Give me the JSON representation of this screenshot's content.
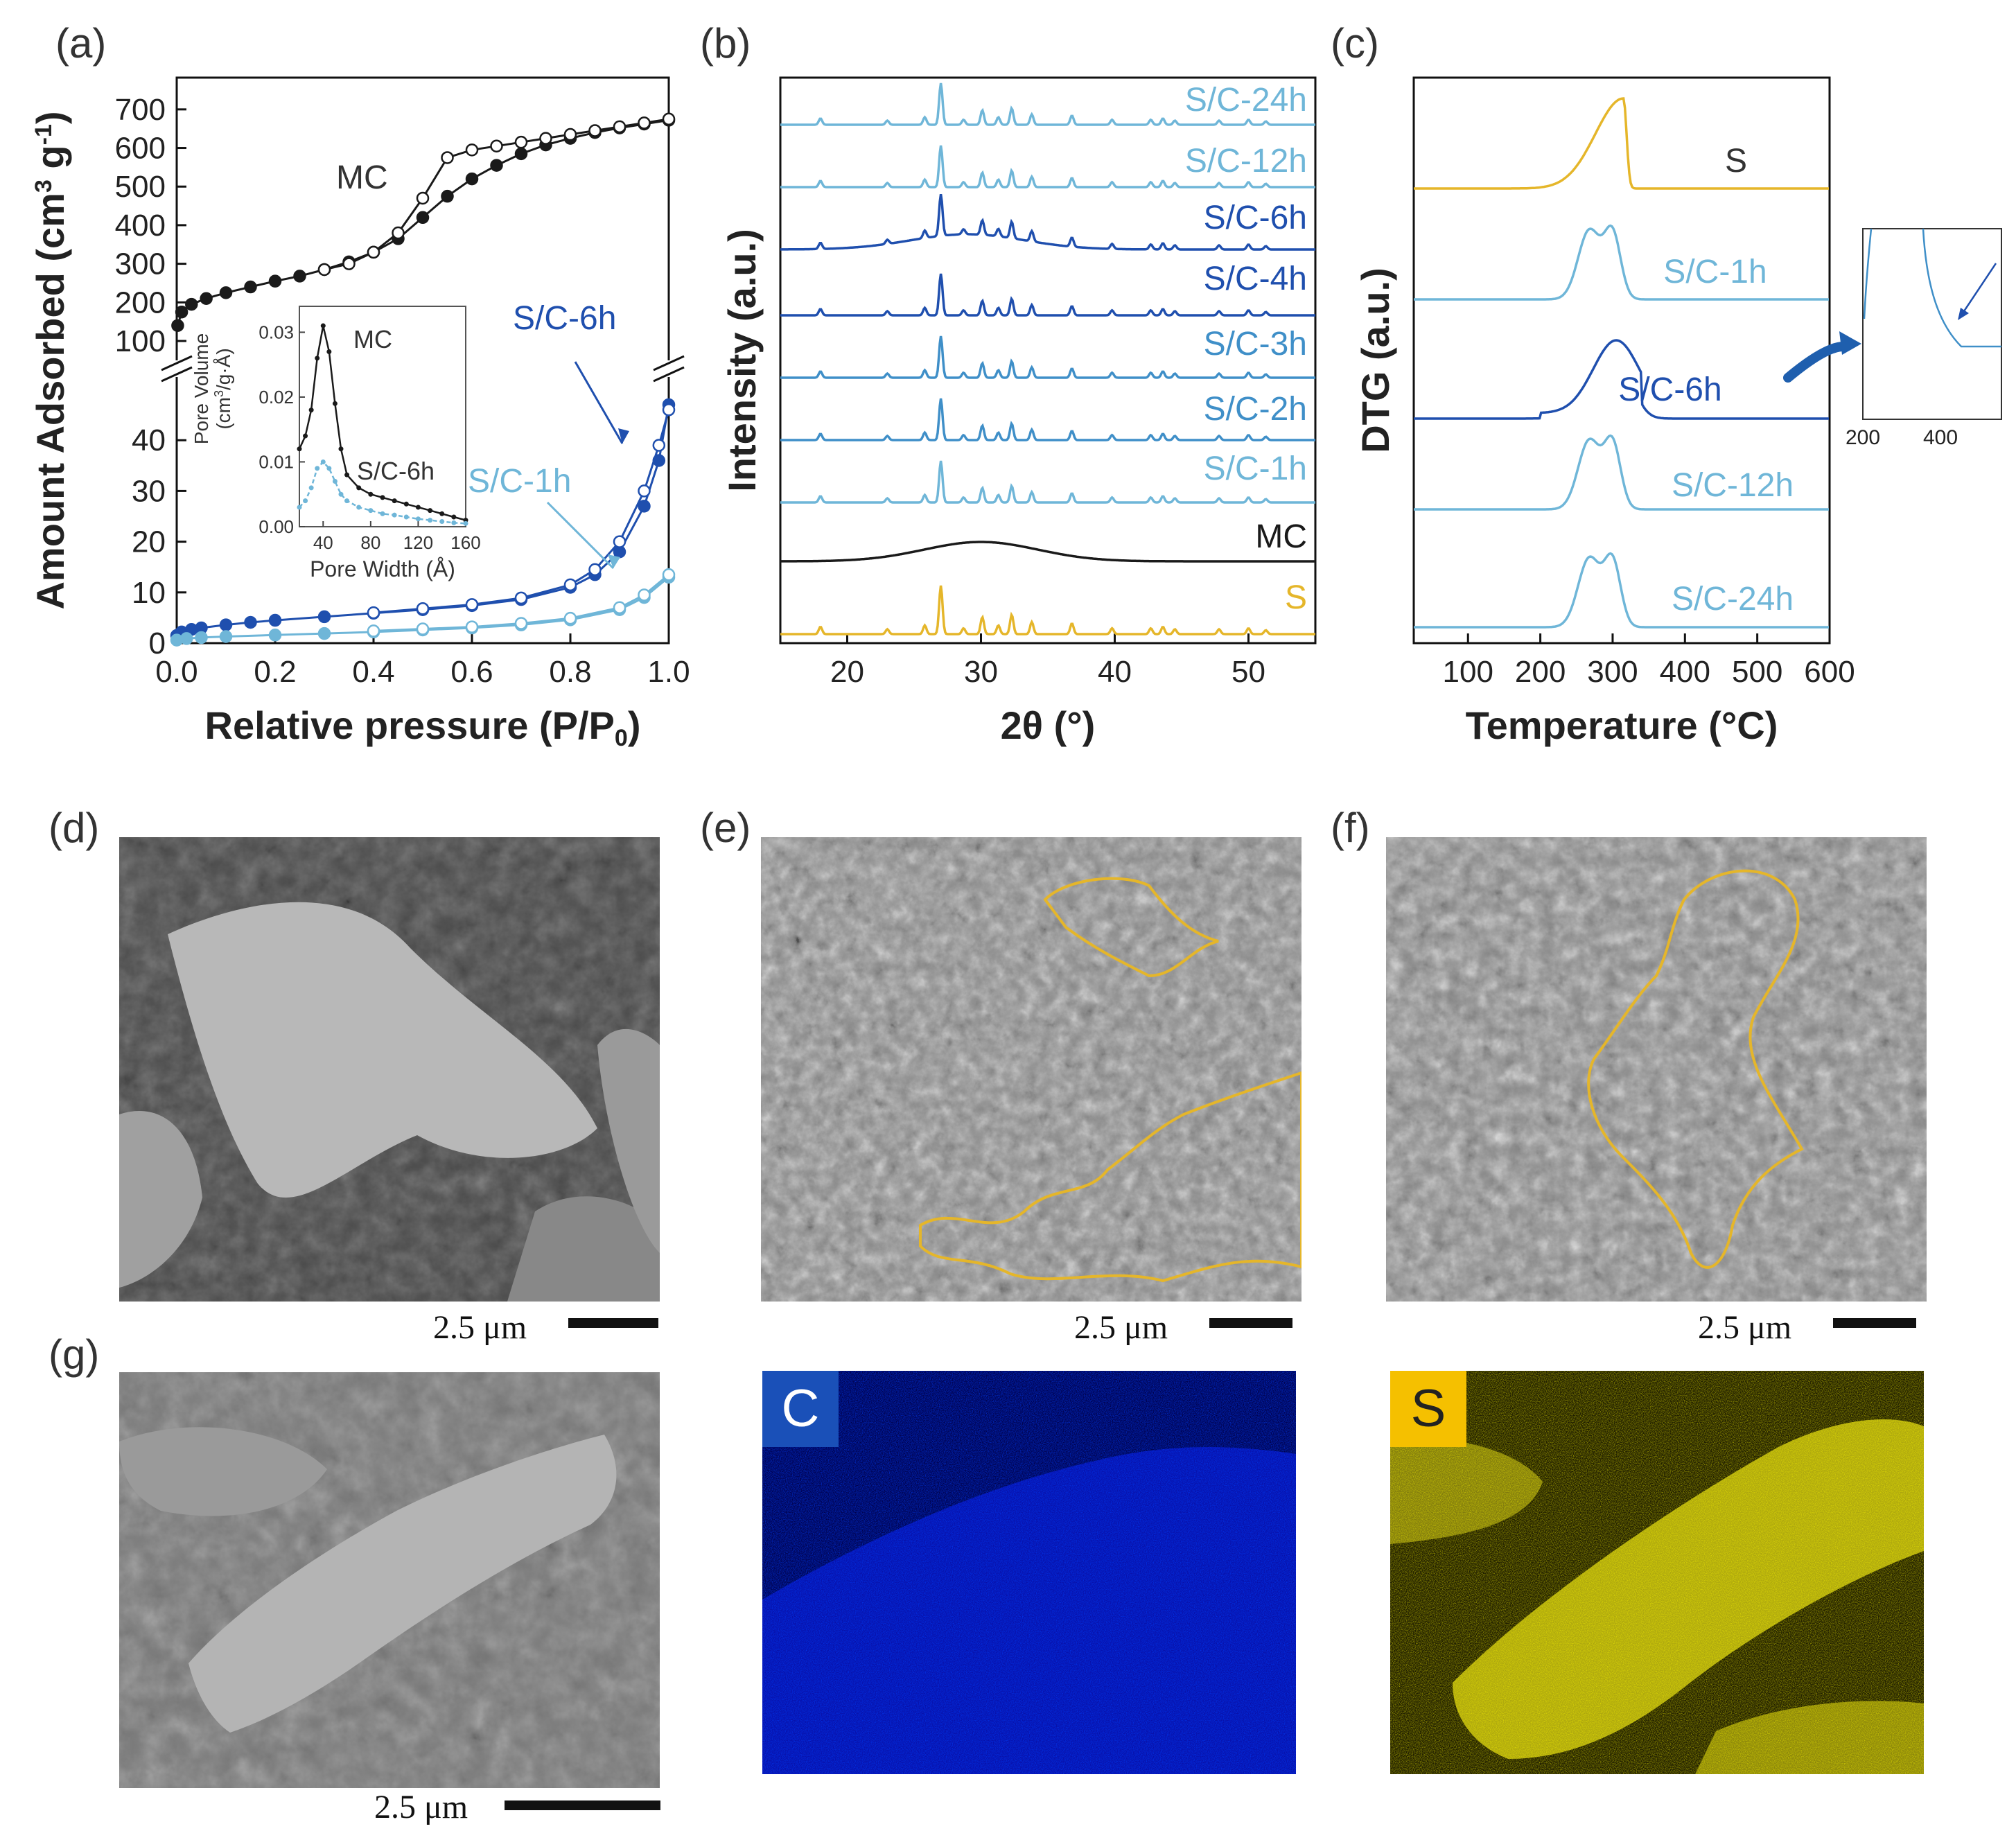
{
  "panel_labels": {
    "a": "(a)",
    "b": "(b)",
    "c": "(c)",
    "d": "(d)",
    "e": "(e)",
    "f": "(f)",
    "g": "(g)"
  },
  "colors": {
    "black": "#1a1a1a",
    "s": "#e5b62a",
    "light": "#6fb6d8",
    "mid": "#3f8fc8",
    "dark": "#1f4fae",
    "grid": "#888888"
  },
  "chart_data": [
    {
      "panel": "a",
      "type": "line",
      "title": "",
      "xlabel": "Relative pressure (P/P",
      "xlabel_sub": "0",
      "ylabel": "Amount Adsorbed (cm",
      "ylabel_sup1": "3",
      "ylabel_g": " g",
      "ylabel_sup2": "-1",
      "xlim": [
        0,
        1
      ],
      "x_ticks": [
        "0.0",
        "0.2",
        "0.4",
        "0.6",
        "0.8",
        "1.0"
      ],
      "y_ticks_lower": [
        "0",
        "10",
        "20",
        "30",
        "40"
      ],
      "y_ticks_upper": [
        "100",
        "200",
        "300",
        "400",
        "500",
        "600",
        "700"
      ],
      "ylim_lower": [
        0,
        50
      ],
      "ylim_upper": [
        100,
        750
      ],
      "annotations": [
        "MC",
        "S/C-6h",
        "S/C-1h"
      ],
      "series": [
        {
          "name": "MC",
          "segment": "upper",
          "color": "black",
          "marker": "filled",
          "x": [
            0.002,
            0.01,
            0.03,
            0.06,
            0.1,
            0.15,
            0.2,
            0.25,
            0.3,
            0.35,
            0.4,
            0.45,
            0.5,
            0.55,
            0.6,
            0.65,
            0.7,
            0.75,
            0.8,
            0.85,
            0.9,
            0.95,
            1.0
          ],
          "y": [
            140,
            175,
            195,
            210,
            225,
            240,
            255,
            268,
            285,
            305,
            330,
            365,
            420,
            475,
            520,
            555,
            585,
            608,
            625,
            640,
            652,
            662,
            672
          ]
        },
        {
          "name": "MC",
          "segment": "upper",
          "color": "black",
          "marker": "open",
          "x": [
            1.0,
            0.95,
            0.9,
            0.85,
            0.8,
            0.75,
            0.7,
            0.65,
            0.6,
            0.55,
            0.5,
            0.45,
            0.4,
            0.35,
            0.3
          ],
          "y": [
            675,
            665,
            655,
            645,
            635,
            625,
            615,
            605,
            595,
            575,
            470,
            380,
            330,
            300,
            285
          ]
        },
        {
          "name": "S/C-6h",
          "segment": "lower",
          "color": "dark",
          "marker": "filled",
          "x": [
            0.0,
            0.01,
            0.03,
            0.05,
            0.1,
            0.15,
            0.2,
            0.3,
            0.4,
            0.5,
            0.6,
            0.7,
            0.8,
            0.85,
            0.9,
            0.95,
            0.98,
            1.0
          ],
          "y": [
            1.5,
            2.2,
            2.7,
            3.0,
            3.6,
            4.1,
            4.5,
            5.2,
            5.9,
            6.6,
            7.4,
            8.6,
            11.0,
            13.5,
            18.0,
            27.0,
            36.0,
            47.0
          ]
        },
        {
          "name": "S/C-6h",
          "segment": "lower",
          "color": "dark",
          "marker": "open",
          "x": [
            1.0,
            0.98,
            0.95,
            0.9,
            0.85,
            0.8,
            0.7,
            0.6,
            0.5,
            0.4
          ],
          "y": [
            46.0,
            39.0,
            30.0,
            20.0,
            14.5,
            11.5,
            8.9,
            7.6,
            6.8,
            6.0
          ]
        },
        {
          "name": "S/C-1h",
          "segment": "lower",
          "color": "light",
          "marker": "filled",
          "x": [
            0.0,
            0.02,
            0.05,
            0.1,
            0.2,
            0.3,
            0.4,
            0.5,
            0.6,
            0.7,
            0.8,
            0.9,
            0.95,
            1.0
          ],
          "y": [
            0.6,
            0.9,
            1.1,
            1.3,
            1.6,
            1.9,
            2.2,
            2.6,
            3.0,
            3.6,
            4.6,
            6.6,
            9.0,
            13.0
          ]
        },
        {
          "name": "S/C-1h",
          "segment": "lower",
          "color": "light",
          "marker": "open",
          "x": [
            1.0,
            0.95,
            0.9,
            0.8,
            0.7,
            0.6,
            0.5,
            0.4
          ],
          "y": [
            13.5,
            9.5,
            7.0,
            4.9,
            3.9,
            3.2,
            2.8,
            2.4
          ]
        }
      ],
      "inset": {
        "xlabel": "Pore Width (Å)",
        "ylabel_line1": "Pore Volume",
        "ylabel_line2": "(cm",
        "ylabel_sup": "3",
        "ylabel_end": "/g·Å)",
        "x_ticks": [
          "40",
          "80",
          "120",
          "160"
        ],
        "y_ticks": [
          "0.00",
          "0.01",
          "0.02",
          "0.03"
        ],
        "xlim": [
          20,
          160
        ],
        "ylim": [
          0,
          0.034
        ],
        "series": [
          {
            "name": "MC",
            "color": "black",
            "x": [
              20,
              25,
              30,
              35,
              40,
              45,
              50,
              55,
              60,
              70,
              80,
              90,
              100,
              110,
              120,
              130,
              140,
              150,
              160
            ],
            "y": [
              0.012,
              0.014,
              0.018,
              0.026,
              0.031,
              0.027,
              0.019,
              0.012,
              0.008,
              0.006,
              0.005,
              0.0045,
              0.004,
              0.0035,
              0.003,
              0.0025,
              0.002,
              0.0015,
              0.001
            ]
          },
          {
            "name": "S/C-6h",
            "color": "light",
            "x": [
              20,
              25,
              30,
              35,
              40,
              45,
              50,
              55,
              60,
              70,
              80,
              90,
              100,
              110,
              120,
              130,
              140,
              150,
              160
            ],
            "y": [
              0.003,
              0.004,
              0.006,
              0.009,
              0.01,
              0.009,
              0.007,
              0.005,
              0.004,
              0.003,
              0.0025,
              0.002,
              0.0018,
              0.0015,
              0.0012,
              0.001,
              0.0008,
              0.0006,
              0.0005
            ]
          }
        ],
        "labels": [
          "MC",
          "S/C-6h"
        ]
      }
    },
    {
      "panel": "b",
      "type": "line",
      "title": "",
      "xlabel": "2θ (°)",
      "ylabel": "Intensity (a.u.)",
      "xlim": [
        15,
        55
      ],
      "x_ticks": [
        "20",
        "30",
        "40",
        "50"
      ],
      "peaks": [
        18.0,
        23.0,
        25.8,
        27.0,
        28.7,
        30.1,
        31.3,
        32.3,
        33.8,
        36.8,
        39.8,
        42.7,
        43.6,
        44.5,
        47.8,
        50.0,
        51.3
      ],
      "peak_heights": [
        0.15,
        0.1,
        0.18,
        1.0,
        0.12,
        0.35,
        0.18,
        0.4,
        0.25,
        0.22,
        0.12,
        0.12,
        0.15,
        0.1,
        0.1,
        0.12,
        0.08
      ],
      "series": [
        {
          "name": "S/C-24h",
          "color": "light"
        },
        {
          "name": "S/C-12h",
          "color": "light"
        },
        {
          "name": "S/C-6h",
          "color": "dark"
        },
        {
          "name": "S/C-4h",
          "color": "dark"
        },
        {
          "name": "S/C-3h",
          "color": "mid"
        },
        {
          "name": "S/C-2h",
          "color": "mid"
        },
        {
          "name": "S/C-1h",
          "color": "light"
        },
        {
          "name": "MC",
          "color": "black"
        },
        {
          "name": "S",
          "color": "s"
        }
      ]
    },
    {
      "panel": "c",
      "type": "line",
      "title": "",
      "xlabel": "Temperature (°C)",
      "ylabel": "DTG (a.u.)",
      "xlim": [
        25,
        600
      ],
      "x_ticks": [
        "100",
        "200",
        "300",
        "400",
        "500",
        "600"
      ],
      "series": [
        {
          "name": "S",
          "color": "s"
        },
        {
          "name": "S/C-1h",
          "color": "light"
        },
        {
          "name": "S/C-6h",
          "color": "dark"
        },
        {
          "name": "S/C-12h",
          "color": "light"
        },
        {
          "name": "S/C-24h",
          "color": "light"
        }
      ],
      "inset": {
        "x_ticks": [
          "200",
          "400"
        ]
      }
    }
  ],
  "scalebars": {
    "d": "2.5 μm",
    "e": "2.5 μm",
    "f": "2.5 μm",
    "g": "2.5 μm"
  },
  "maps": {
    "c": "C",
    "s": "S"
  }
}
